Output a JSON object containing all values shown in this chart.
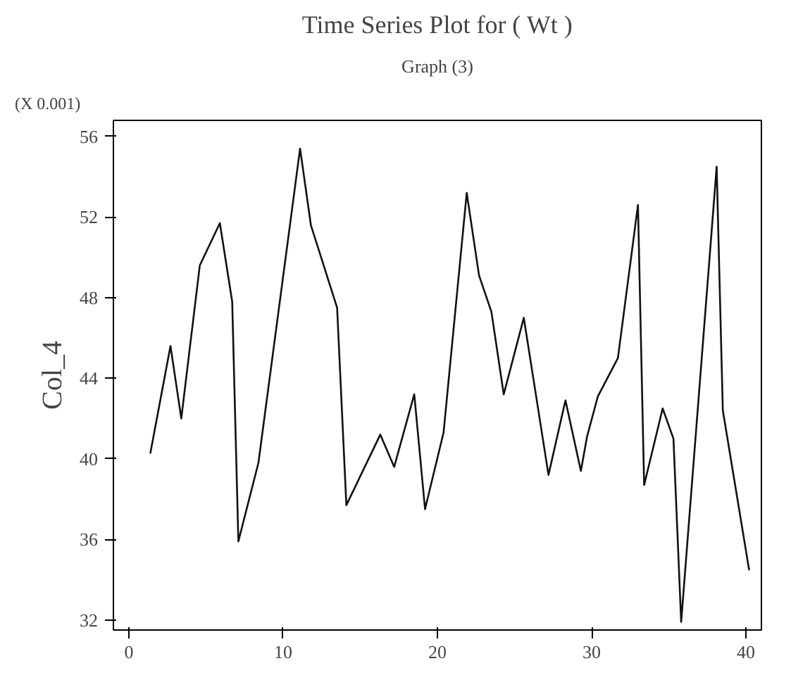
{
  "chart_data": {
    "type": "line",
    "title": "Time Series Plot for ( Wt )",
    "subtitle": "Graph (3)",
    "ylabel": "Col_4",
    "annotations": [
      "(X 0.001)"
    ],
    "xlim": [
      -1,
      41
    ],
    "ylim": [
      31.5,
      56.8
    ],
    "xticks": [
      0,
      10,
      20,
      30,
      40
    ],
    "yticks": [
      32,
      36,
      40,
      44,
      48,
      52,
      56
    ],
    "grid": false,
    "marker": "none",
    "line_style": "solid",
    "series": [
      {
        "color": "#111111",
        "x": [
          1.4,
          2.7,
          3.4,
          4.6,
          5.9,
          6.7,
          7.1,
          8.4,
          11.1,
          11.8,
          13.5,
          14.1,
          16.3,
          17.2,
          18.5,
          19.2,
          20.4,
          21.9,
          22.7,
          23.5,
          24.3,
          25.6,
          27.2,
          28.3,
          29.3,
          29.7,
          30.4,
          31.7,
          33.0,
          33.4,
          34.6,
          35.3,
          35.8,
          38.1,
          38.5,
          40.2
        ],
        "values": [
          40.3,
          45.6,
          42.0,
          49.6,
          51.7,
          47.8,
          35.9,
          39.8,
          55.4,
          51.6,
          47.5,
          37.7,
          41.2,
          39.6,
          43.2,
          37.5,
          41.3,
          53.2,
          49.1,
          47.3,
          43.2,
          47.0,
          39.2,
          42.9,
          39.4,
          41.1,
          43.1,
          45.0,
          52.6,
          38.7,
          42.5,
          41.0,
          31.9,
          54.5,
          42.4,
          34.5
        ]
      }
    ]
  }
}
